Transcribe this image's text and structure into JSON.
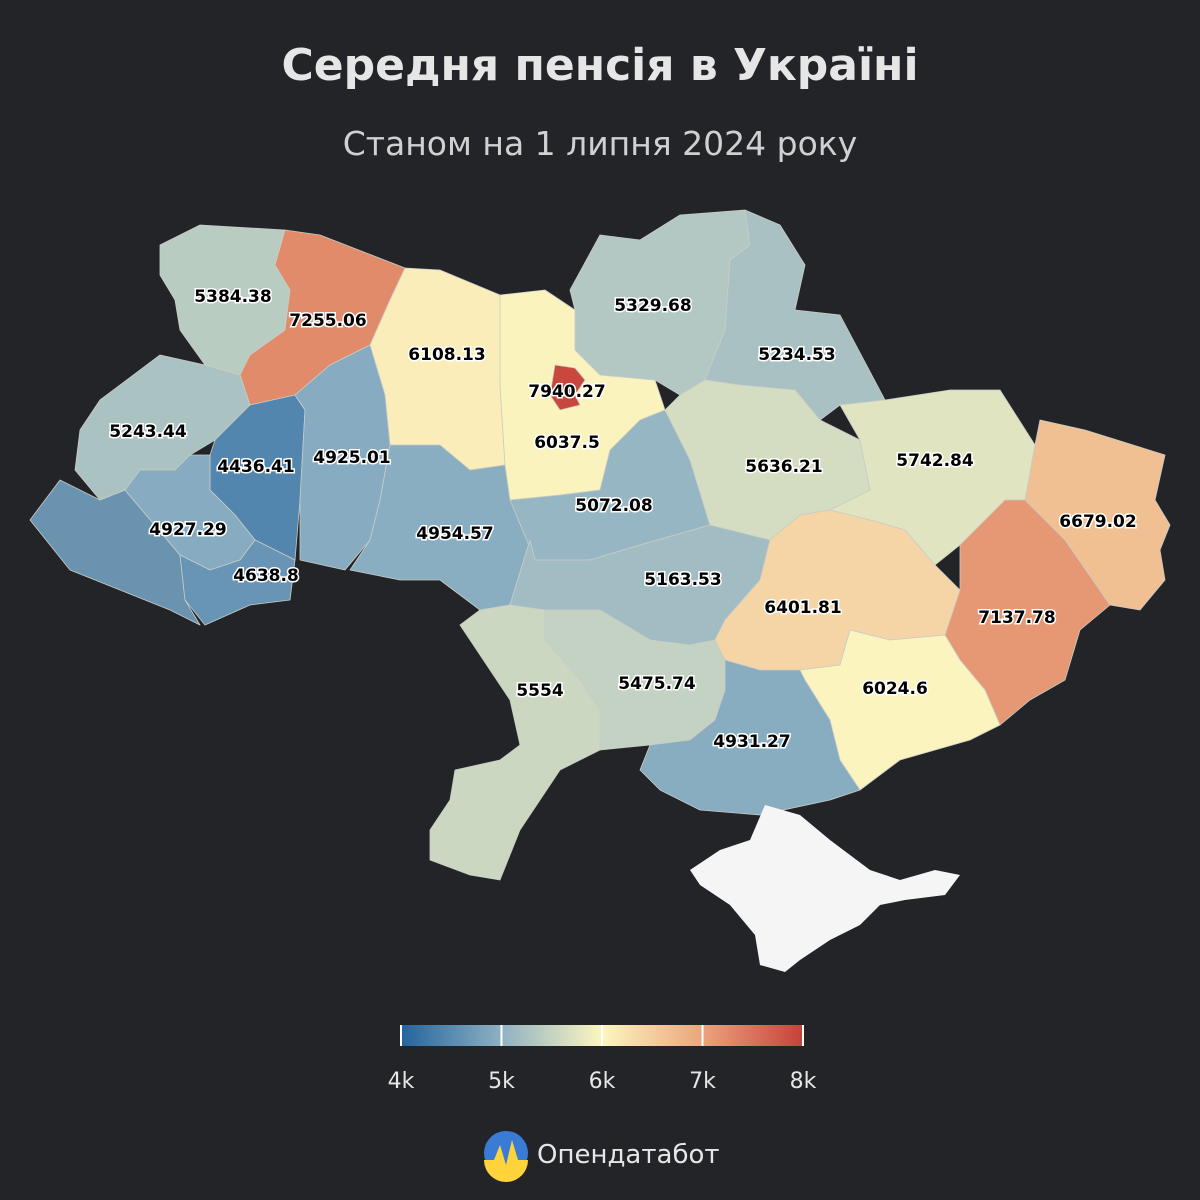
{
  "title": "Середня пенсія в Україні",
  "subtitle": "Станом на 1 липня 2024 року",
  "chart_data": {
    "type": "choropleth",
    "values": [
      5384.38,
      7255.06,
      6108.13,
      6037.5,
      7940.27,
      5329.68,
      5234.53,
      5243.44,
      4436.41,
      4925.01,
      4954.57,
      5072.08,
      5636.21,
      5742.84,
      6679.02,
      4927.29,
      4638.8,
      5163.53,
      6401.81,
      7137.78,
      6024.6,
      5554,
      5475.74,
      4931.27
    ],
    "colors": [
      "#24649d",
      "#8fb1c3",
      "#fcf6c0",
      "#eba57c",
      "#c6413a"
    ],
    "clim": [
      4000,
      8000
    ],
    "ticks": [
      {
        "value": 4000,
        "label": "4k"
      },
      {
        "value": 5000,
        "label": "5k"
      },
      {
        "value": 6000,
        "label": "6k"
      },
      {
        "value": 7000,
        "label": "7k"
      },
      {
        "value": 8000,
        "label": "8k"
      }
    ]
  },
  "brand": "Опендатабот"
}
